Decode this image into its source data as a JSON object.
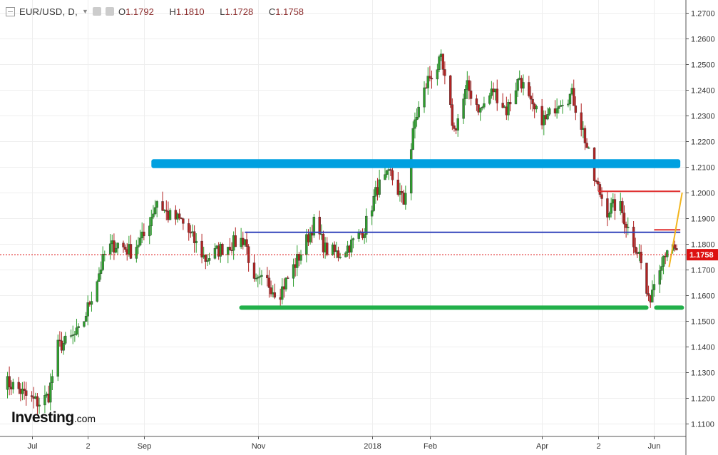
{
  "header": {
    "symbol": "EUR/USD, D,",
    "open_label": "O",
    "open": "1.1792",
    "high_label": "H",
    "high": "1.1810",
    "low_label": "L",
    "low": "1.1728",
    "close_label": "C",
    "close": "1.1758"
  },
  "logo": {
    "text": "Investing",
    "suffix": ".com"
  },
  "colors": {
    "up": "#2e9e2e",
    "down": "#b22222",
    "support_top": "#00a0e0",
    "mid_line": "#3344bb",
    "support_bottom": "#22b04a",
    "resistance": "#e03030",
    "trend": "#f2b51e",
    "last_price": "#dd1111"
  },
  "chart_data": {
    "type": "candlestick",
    "title": "EUR/USD, D,",
    "ylim": [
      1.105,
      1.275
    ],
    "y_ticks": [
      "1.2700",
      "1.2600",
      "1.2500",
      "1.2400",
      "1.2300",
      "1.2200",
      "1.2100",
      "1.2000",
      "1.1900",
      "1.1800",
      "1.1700",
      "1.1600",
      "1.1500",
      "1.1400",
      "1.1300",
      "1.1200",
      "1.1100"
    ],
    "x_ticks": [
      {
        "label": "Jul",
        "date": "2017-07-03"
      },
      {
        "label": "2",
        "date": "2017-08-02"
      },
      {
        "label": "Sep",
        "date": "2017-09-01"
      },
      {
        "label": "Nov",
        "date": "2017-11-01"
      },
      {
        "label": "2018",
        "date": "2018-01-01"
      },
      {
        "label": "Feb",
        "date": "2018-02-01"
      },
      {
        "label": "Apr",
        "date": "2018-04-02"
      },
      {
        "label": "2",
        "date": "2018-05-02"
      },
      {
        "label": "Jun",
        "date": "2018-06-01"
      }
    ],
    "x_start": "2017-06-16",
    "x_end": "2018-06-18",
    "last_price": 1.1758,
    "last_price_label": "1.1758",
    "close_series": [
      [
        "2017-06-17",
        1.127
      ],
      [
        "2017-06-25",
        1.124
      ],
      [
        "2017-07-01",
        1.12
      ],
      [
        "2017-07-07",
        1.118
      ],
      [
        "2017-07-12",
        1.121
      ],
      [
        "2017-07-17",
        1.14
      ],
      [
        "2017-07-22",
        1.142
      ],
      [
        "2017-07-29",
        1.146
      ],
      [
        "2017-08-05",
        1.162
      ],
      [
        "2017-08-12",
        1.178
      ],
      [
        "2017-08-18",
        1.18
      ],
      [
        "2017-08-25",
        1.177
      ],
      [
        "2017-09-01",
        1.183
      ],
      [
        "2017-09-08",
        1.197
      ],
      [
        "2017-09-14",
        1.191
      ],
      [
        "2017-09-21",
        1.189
      ],
      [
        "2017-09-28",
        1.181
      ],
      [
        "2017-10-04",
        1.174
      ],
      [
        "2017-10-12",
        1.178
      ],
      [
        "2017-10-18",
        1.18
      ],
      [
        "2017-10-25",
        1.182
      ],
      [
        "2017-10-30",
        1.164
      ],
      [
        "2017-11-05",
        1.166
      ],
      [
        "2017-11-12",
        1.16
      ],
      [
        "2017-11-18",
        1.168
      ],
      [
        "2017-11-25",
        1.178
      ],
      [
        "2017-12-01",
        1.188
      ],
      [
        "2017-12-07",
        1.178
      ],
      [
        "2017-12-14",
        1.176
      ],
      [
        "2017-12-21",
        1.18
      ],
      [
        "2017-12-28",
        1.186
      ],
      [
        "2018-01-04",
        1.202
      ],
      [
        "2018-01-11",
        1.207
      ],
      [
        "2018-01-18",
        1.196
      ],
      [
        "2018-01-24",
        1.228
      ],
      [
        "2018-01-31",
        1.244
      ],
      [
        "2018-02-07",
        1.251
      ],
      [
        "2018-02-14",
        1.224
      ],
      [
        "2018-02-21",
        1.241
      ],
      [
        "2018-02-28",
        1.232
      ],
      [
        "2018-03-07",
        1.24
      ],
      [
        "2018-03-14",
        1.232
      ],
      [
        "2018-03-21",
        1.245
      ],
      [
        "2018-03-28",
        1.232
      ],
      [
        "2018-04-04",
        1.228
      ],
      [
        "2018-04-11",
        1.236
      ],
      [
        "2018-04-18",
        1.238
      ],
      [
        "2018-04-24",
        1.224
      ],
      [
        "2018-04-30",
        1.205
      ],
      [
        "2018-05-07",
        1.193
      ],
      [
        "2018-05-13",
        1.196
      ],
      [
        "2018-05-19",
        1.184
      ],
      [
        "2018-05-24",
        1.176
      ],
      [
        "2018-05-29",
        1.157
      ],
      [
        "2018-06-03",
        1.171
      ],
      [
        "2018-06-08",
        1.179
      ],
      [
        "2018-06-13",
        1.176
      ]
    ],
    "annotations": [
      {
        "kind": "zone",
        "color": "support_top",
        "x1": "2017-09-05",
        "x2": "2018-06-15",
        "y1": 1.2095,
        "y2": 1.213
      },
      {
        "kind": "line",
        "color": "mid_line",
        "x1": "2017-10-25",
        "x2": "2018-06-15",
        "y": 1.1845
      },
      {
        "kind": "zone",
        "color": "support_bottom",
        "x1": "2017-10-22",
        "x2": "2018-05-29",
        "y1": 1.1545,
        "y2": 1.156
      },
      {
        "kind": "zone",
        "color": "support_bottom",
        "x1": "2018-06-01",
        "x2": "2018-06-17",
        "y1": 1.1545,
        "y2": 1.156
      },
      {
        "kind": "line",
        "color": "resistance",
        "x1": "2018-05-02",
        "x2": "2018-06-15",
        "y": 1.2005
      },
      {
        "kind": "line",
        "color": "resistance",
        "x1": "2018-06-01",
        "x2": "2018-06-15",
        "y": 1.1855
      },
      {
        "kind": "segment",
        "color": "trend",
        "x1": "2018-06-09",
        "y1": 1.171,
        "x2": "2018-06-16",
        "y2": 1.2
      }
    ]
  }
}
